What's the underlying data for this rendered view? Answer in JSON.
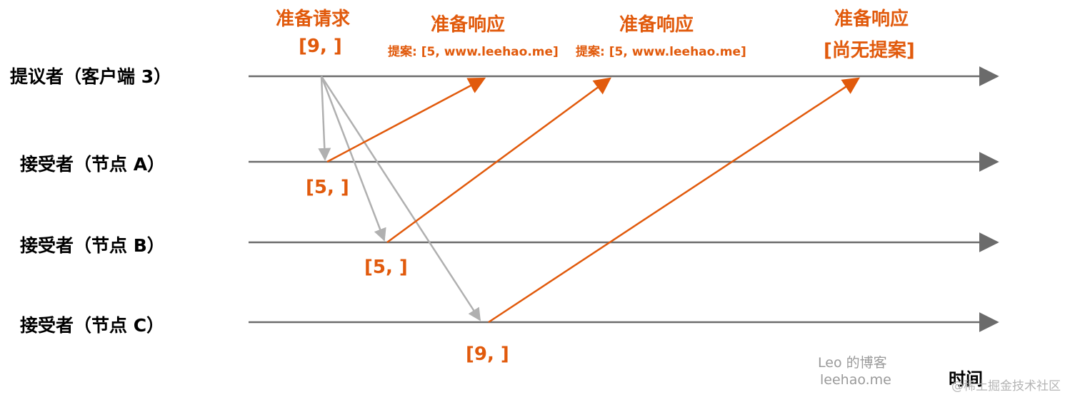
{
  "participants": {
    "proposer": "提议者（客户端 3）",
    "acceptor_a": "接受者（节点 A）",
    "acceptor_b": "接受者（节点 B）",
    "acceptor_c": "接受者（节点 C）"
  },
  "prepare_request": {
    "title": "准备请求",
    "value": "[9, ]"
  },
  "responses": [
    {
      "title": "准备响应",
      "detail": "提案: [5, www.leehao.me]"
    },
    {
      "title": "准备响应",
      "detail": "提案: [5, www.leehao.me]"
    },
    {
      "title": "准备响应",
      "detail": "[尚无提案]"
    }
  ],
  "acceptor_values": {
    "a": "[5, ]",
    "b": "[5, ]",
    "c": "[9, ]"
  },
  "time_label": "时间",
  "watermark": {
    "line1": "Leo 的博客",
    "line2": "leehao.me"
  },
  "platform_mark": "@稀土掘金技术社区",
  "colors": {
    "timeline": "#6b6b6b",
    "request_arrow": "#b0b0b0",
    "response_arrow": "#e15a0c"
  }
}
